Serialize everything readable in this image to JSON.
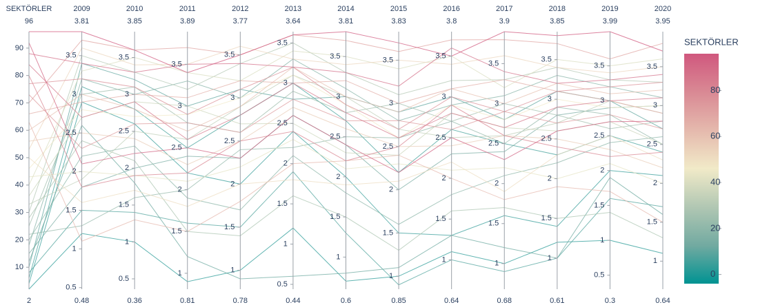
{
  "chart_data": {
    "type": "parcoords",
    "dimensions": [
      {
        "label": "SEKTÖRLER",
        "range": [
          2,
          96
        ],
        "ticks": [
          10,
          20,
          30,
          40,
          50,
          60,
          70,
          80,
          90
        ]
      },
      {
        "label": "2009",
        "range": [
          0.48,
          3.81
        ],
        "ticks": [
          0.5,
          1,
          1.5,
          2,
          2.5,
          3,
          3.5
        ]
      },
      {
        "label": "2010",
        "range": [
          0.36,
          3.85
        ],
        "ticks": [
          0.5,
          1,
          1.5,
          2,
          2.5,
          3,
          3.5
        ]
      },
      {
        "label": "2011",
        "range": [
          0.81,
          3.89
        ],
        "ticks": [
          1,
          1.5,
          2,
          2.5,
          3,
          3.5
        ]
      },
      {
        "label": "2012",
        "range": [
          0.78,
          3.77
        ],
        "ticks": [
          1,
          1.5,
          2,
          2.5,
          3,
          3.5
        ]
      },
      {
        "label": "2013",
        "range": [
          0.44,
          3.64
        ],
        "ticks": [
          0.5,
          1,
          1.5,
          2,
          2.5,
          3,
          3.5
        ]
      },
      {
        "label": "2014",
        "range": [
          0.6,
          3.81
        ],
        "ticks": [
          1,
          1.5,
          2,
          2.5,
          3,
          3.5
        ]
      },
      {
        "label": "2015",
        "range": [
          0.85,
          3.83
        ],
        "ticks": [
          1,
          1.5,
          2,
          2.5,
          3,
          3.5
        ]
      },
      {
        "label": "2016",
        "range": [
          0.64,
          3.8
        ],
        "ticks": [
          1,
          1.5,
          2,
          2.5,
          3,
          3.5
        ]
      },
      {
        "label": "2017",
        "range": [
          0.68,
          3.9
        ],
        "ticks": [
          1,
          1.5,
          2,
          2.5,
          3,
          3.5
        ]
      },
      {
        "label": "2018",
        "range": [
          0.61,
          3.85
        ],
        "ticks": [
          1,
          1.5,
          2,
          2.5,
          3,
          3.5
        ]
      },
      {
        "label": "2019",
        "range": [
          0.3,
          3.99
        ],
        "ticks": [
          0.5,
          1,
          1.5,
          2,
          2.5,
          3,
          3.5
        ]
      },
      {
        "label": "2020",
        "range": [
          0.64,
          3.95
        ],
        "ticks": [
          1,
          1.5,
          2,
          2.5,
          3,
          3.5
        ]
      }
    ],
    "lines": [
      [
        2,
        1.2,
        1.0,
        0.9,
        1.0,
        1.2,
        0.7,
        1.0,
        1.1,
        1.0,
        1.2,
        1.0,
        1.1
      ],
      [
        4,
        2.9,
        2.6,
        2.2,
        2.0,
        2.4,
        2.0,
        1.5,
        1.3,
        1.6,
        1.4,
        2.0,
        2.1
      ],
      [
        6,
        3.1,
        2.8,
        2.5,
        2.8,
        3.0,
        2.7,
        2.2,
        2.6,
        2.5,
        2.3,
        2.5,
        2.4
      ],
      [
        8,
        1.5,
        1.4,
        1.6,
        1.5,
        1.9,
        1.3,
        0.9,
        1.0,
        0.9,
        1.0,
        1.6,
        1.7
      ],
      [
        10,
        3.4,
        3.2,
        3.0,
        3.1,
        2.8,
        3.0,
        2.9,
        3.0,
        2.8,
        3.1,
        3.0,
        2.7
      ],
      [
        12,
        2.6,
        1.8,
        1.2,
        0.9,
        0.6,
        0.8,
        1.1,
        1.3,
        1.2,
        1.0,
        1.9,
        1.6
      ],
      [
        15,
        1.8,
        2.0,
        2.4,
        2.3,
        2.6,
        2.4,
        2.0,
        2.3,
        2.4,
        2.8,
        2.9,
        3.0
      ],
      [
        18,
        3.2,
        3.0,
        3.3,
        3.0,
        3.3,
        3.1,
        2.8,
        2.9,
        3.1,
        3.3,
        3.2,
        3.1
      ],
      [
        20,
        2.2,
        2.3,
        1.9,
        1.7,
        2.1,
        1.8,
        1.6,
        1.8,
        2.1,
        2.2,
        2.4,
        2.6
      ],
      [
        22,
        1.3,
        1.6,
        2.0,
        2.4,
        2.2,
        2.5,
        2.6,
        2.7,
        2.5,
        2.9,
        2.8,
        2.5
      ],
      [
        25,
        3.0,
        3.1,
        2.8,
        2.6,
        2.9,
        2.8,
        3.0,
        2.7,
        3.0,
        2.8,
        2.6,
        2.8
      ],
      [
        28,
        2.4,
        2.1,
        1.5,
        1.4,
        1.6,
        1.5,
        1.3,
        1.6,
        1.7,
        1.5,
        1.4,
        1.3
      ],
      [
        30,
        3.5,
        3.3,
        3.2,
        3.4,
        3.5,
        3.3,
        3.1,
        3.2,
        3.3,
        3.4,
        3.3,
        3.3
      ],
      [
        33,
        1.9,
        2.5,
        2.6,
        2.9,
        3.1,
        3.0,
        2.7,
        2.5,
        2.6,
        2.7,
        3.0,
        2.9
      ],
      [
        36,
        2.7,
        2.9,
        3.0,
        2.7,
        2.5,
        2.3,
        2.4,
        2.8,
        2.7,
        2.6,
        2.7,
        2.5
      ],
      [
        40,
        3.3,
        3.5,
        3.4,
        3.2,
        3.4,
        3.5,
        3.4,
        3.5,
        3.2,
        3.5,
        3.5,
        3.6
      ],
      [
        43,
        2.0,
        1.9,
        2.1,
        2.2,
        2.3,
        2.1,
        2.3,
        2.1,
        2.2,
        2.0,
        2.1,
        2.0
      ],
      [
        46,
        2.8,
        2.7,
        2.9,
        3.0,
        3.1,
        2.9,
        2.6,
        2.9,
        2.8,
        3.0,
        2.9,
        3.0
      ],
      [
        50,
        1.6,
        1.7,
        1.8,
        2.0,
        1.8,
        1.9,
        2.1,
        2.2,
        1.9,
        2.3,
        2.5,
        2.3
      ],
      [
        53,
        3.6,
        3.4,
        3.5,
        3.6,
        3.3,
        3.4,
        3.5,
        3.4,
        3.6,
        3.4,
        3.4,
        3.5
      ],
      [
        56,
        2.5,
        2.4,
        2.3,
        2.5,
        2.7,
        2.6,
        2.5,
        2.4,
        2.6,
        2.5,
        2.3,
        2.2
      ],
      [
        60,
        3.0,
        2.8,
        2.7,
        2.9,
        3.2,
        3.0,
        2.9,
        3.1,
        3.0,
        3.2,
        3.1,
        3.2
      ],
      [
        63,
        1.1,
        1.3,
        1.5,
        1.8,
        2.0,
        2.2,
        2.4,
        2.0,
        1.8,
        1.9,
        1.7,
        1.5
      ],
      [
        66,
        2.9,
        3.0,
        3.1,
        3.2,
        3.0,
        3.2,
        3.0,
        3.1,
        3.3,
        3.1,
        3.0,
        2.9
      ],
      [
        70,
        3.7,
        3.6,
        3.7,
        3.5,
        3.6,
        3.7,
        3.6,
        3.7,
        3.8,
        3.7,
        3.6,
        3.8
      ],
      [
        73,
        2.3,
        2.6,
        2.8,
        2.6,
        2.8,
        2.7,
        2.8,
        2.6,
        2.9,
        2.7,
        2.8,
        2.7
      ],
      [
        77,
        3.2,
        3.1,
        2.9,
        3.1,
        3.2,
        2.9,
        2.7,
        3.0,
        2.9,
        3.1,
        3.2,
        3.3
      ],
      [
        80,
        1.8,
        1.9,
        2.2,
        2.5,
        2.4,
        2.2,
        2.5,
        2.9,
        2.6,
        2.4,
        2.2,
        2.4
      ],
      [
        84,
        2.7,
        2.9,
        2.6,
        2.8,
        3.0,
        2.8,
        2.6,
        2.8,
        2.7,
        2.9,
        3.0,
        3.1
      ],
      [
        88,
        3.4,
        3.3,
        3.5,
        3.4,
        3.2,
        3.3,
        3.2,
        3.6,
        3.4,
        3.2,
        3.3,
        3.4
      ],
      [
        92,
        2.1,
        2.2,
        2.5,
        2.3,
        2.6,
        2.4,
        2.2,
        2.5,
        2.3,
        2.6,
        2.7,
        2.8
      ],
      [
        96,
        3.81,
        3.6,
        3.4,
        3.5,
        3.6,
        3.81,
        3.7,
        3.5,
        3.9,
        3.8,
        3.99,
        3.7
      ]
    ],
    "colorscale": [
      "#009392",
      "#72aaa1",
      "#b1c7b3",
      "#f1eac8",
      "#e5b9ad",
      "#d98994",
      "#d0587e"
    ],
    "colorbar": {
      "title": "SEKTÖRLER",
      "clim": [
        -4,
        96
      ],
      "ticks": [
        0,
        20,
        40,
        60,
        80
      ]
    }
  }
}
